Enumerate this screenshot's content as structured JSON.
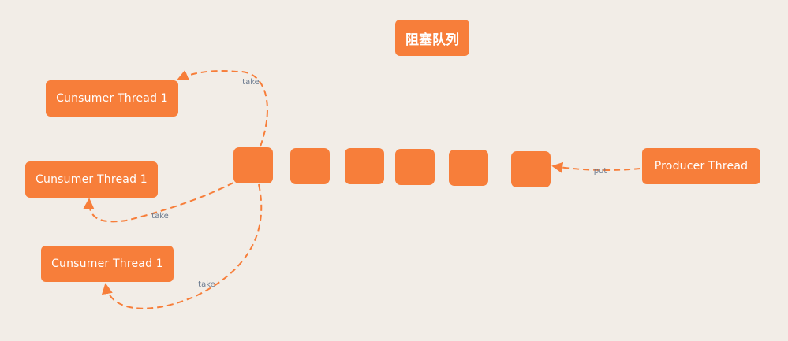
{
  "diagram": {
    "title": "阻塞队列",
    "producer": {
      "label": "Producer Thread"
    },
    "consumers": [
      {
        "label": "Cunsumer Thread 1"
      },
      {
        "label": "Cunsumer Thread 1"
      },
      {
        "label": "Cunsumer Thread 1"
      }
    ],
    "queue_slot_count": 6,
    "edges": [
      {
        "from": "queue-slot-1",
        "to": "consumer-1",
        "label": "take"
      },
      {
        "from": "queue-slot-1",
        "to": "consumer-2",
        "label": "take"
      },
      {
        "from": "queue-slot-1",
        "to": "consumer-3",
        "label": "take"
      },
      {
        "from": "producer",
        "to": "queue-slot-6",
        "label": "put"
      }
    ]
  },
  "colors": {
    "background": "#f2ede7",
    "node": "#f77e3a",
    "edge": "#f77e3a",
    "edge_label": "#6b7a8f",
    "text": "#ffffff"
  }
}
